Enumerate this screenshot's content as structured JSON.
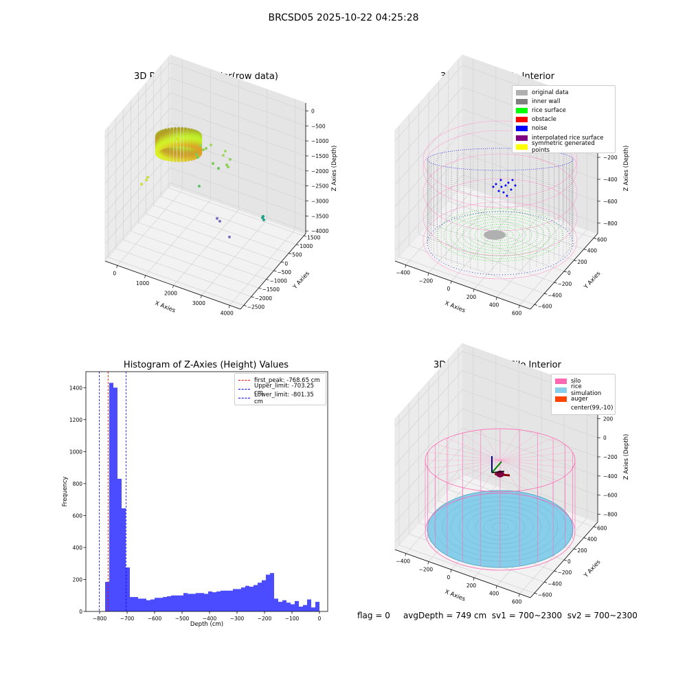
{
  "main_title": "BRCSD05 2025-10-22 04:25:28",
  "footer": {
    "flag": "flag = 0",
    "avg_depth": "avgDepth = 749 cm",
    "sv1": "sv1 = 700~2300",
    "sv2": "sv2 = 700~2300"
  },
  "colors": {
    "hist_bar": "#4b4bff",
    "original": "#b0b0b0",
    "inner_wall": "#808080",
    "rice_surface": "#00ff00",
    "obstacle": "#ff0000",
    "noise": "#0000ff",
    "interpolated": "#800080",
    "symmetric": "#ffff00",
    "silo": "#ff69b4",
    "rice_sim": "#87ceeb",
    "auger": "#ff4500"
  },
  "chart_data": [
    {
      "type": "scatter",
      "title": "3D Plot of Silo Interior(row data)",
      "xlabel": "X Axies",
      "ylabel": "Y Axies",
      "zlabel": "Z Axies (Depth)",
      "x_ticks": [
        "0",
        "1000",
        "2000",
        "3000",
        "4000"
      ],
      "y_ticks": [
        "−2500",
        "−2000",
        "−1500",
        "−1000",
        "−500",
        "0",
        "500",
        "1000",
        "1500"
      ],
      "z_ticks": [
        "0",
        "−500",
        "−1000",
        "−1500",
        "−2000",
        "−2500",
        "−3000",
        "−3500",
        "−4000"
      ],
      "xlim": [
        -400,
        4200
      ],
      "ylim": [
        -2500,
        1500
      ],
      "zlim": [
        -4200,
        200
      ]
    },
    {
      "type": "scatter",
      "title": "3D classify of Silo Interior",
      "xlabel": "X Axies",
      "ylabel": "Y Axies",
      "zlabel": "Z Axies (Depth)",
      "x_ticks": [
        "−400",
        "−200",
        "0",
        "200",
        "400",
        "600"
      ],
      "y_ticks": [
        "−600",
        "−400",
        "−200",
        "0",
        "200",
        "400",
        "600"
      ],
      "z_ticks": [
        "200",
        "0",
        "−200",
        "−400",
        "−600",
        "−800"
      ],
      "legend": [
        "original data",
        "inner wall",
        "rice surface",
        "obstacle",
        "noise",
        "interpolated rice surface",
        "symmetric generated points"
      ]
    },
    {
      "type": "bar",
      "title": "Histogram of Z-Axies (Height) Values",
      "xlabel": "Depth (cm)",
      "ylabel": "Frequency",
      "xlim": [
        -850,
        30
      ],
      "ylim": [
        0,
        1500
      ],
      "x_ticks": [
        -800,
        -700,
        -600,
        -500,
        -400,
        -300,
        -200,
        -100,
        0
      ],
      "y_ticks": [
        0,
        200,
        400,
        600,
        800,
        1000,
        1200,
        1400
      ],
      "bin_width": 15,
      "bin_starts": [
        -780,
        -765,
        -750,
        -735,
        -720,
        -705,
        -690,
        -675,
        -660,
        -645,
        -630,
        -615,
        -600,
        -585,
        -570,
        -555,
        -540,
        -525,
        -510,
        -495,
        -480,
        -465,
        -450,
        -435,
        -420,
        -405,
        -390,
        -375,
        -360,
        -345,
        -330,
        -315,
        -300,
        -285,
        -270,
        -255,
        -240,
        -225,
        -210,
        -195,
        -180,
        -165,
        -150,
        -135,
        -120,
        -105,
        -90,
        -75,
        -60,
        -45,
        -30,
        -15
      ],
      "values": [
        185,
        1430,
        1400,
        830,
        645,
        275,
        90,
        90,
        80,
        80,
        70,
        75,
        85,
        85,
        90,
        95,
        100,
        100,
        100,
        115,
        110,
        110,
        115,
        115,
        110,
        125,
        120,
        125,
        130,
        130,
        130,
        140,
        140,
        150,
        160,
        155,
        165,
        180,
        195,
        230,
        240,
        80,
        60,
        70,
        55,
        45,
        65,
        30,
        40,
        75,
        25,
        60
      ],
      "lines": [
        {
          "name": "first_peak: -768.65 cm",
          "x": -768.65,
          "color": "#ff0000"
        },
        {
          "name": "Upper_limit: -703.25 cm",
          "x": -703.25,
          "color": "#0000ff"
        },
        {
          "name": "Lower_limit: -801.35 cm",
          "x": -801.35,
          "color": "#0000ff"
        }
      ]
    },
    {
      "type": "scatter",
      "title": "3D simulation of Silo Interior",
      "xlabel": "X Axies",
      "ylabel": "Y Axies",
      "zlabel": "Z Axies (Depth)",
      "x_ticks": [
        "−400",
        "−200",
        "0",
        "200",
        "400",
        "600"
      ],
      "y_ticks": [
        "−600",
        "−400",
        "−200",
        "0",
        "200",
        "400",
        "600"
      ],
      "z_ticks": [
        "400",
        "200",
        "0",
        "−200",
        "−400",
        "−600",
        "−800"
      ],
      "legend": [
        "silo",
        "rice simulation",
        "auger",
        "center(99,-10)"
      ]
    }
  ]
}
